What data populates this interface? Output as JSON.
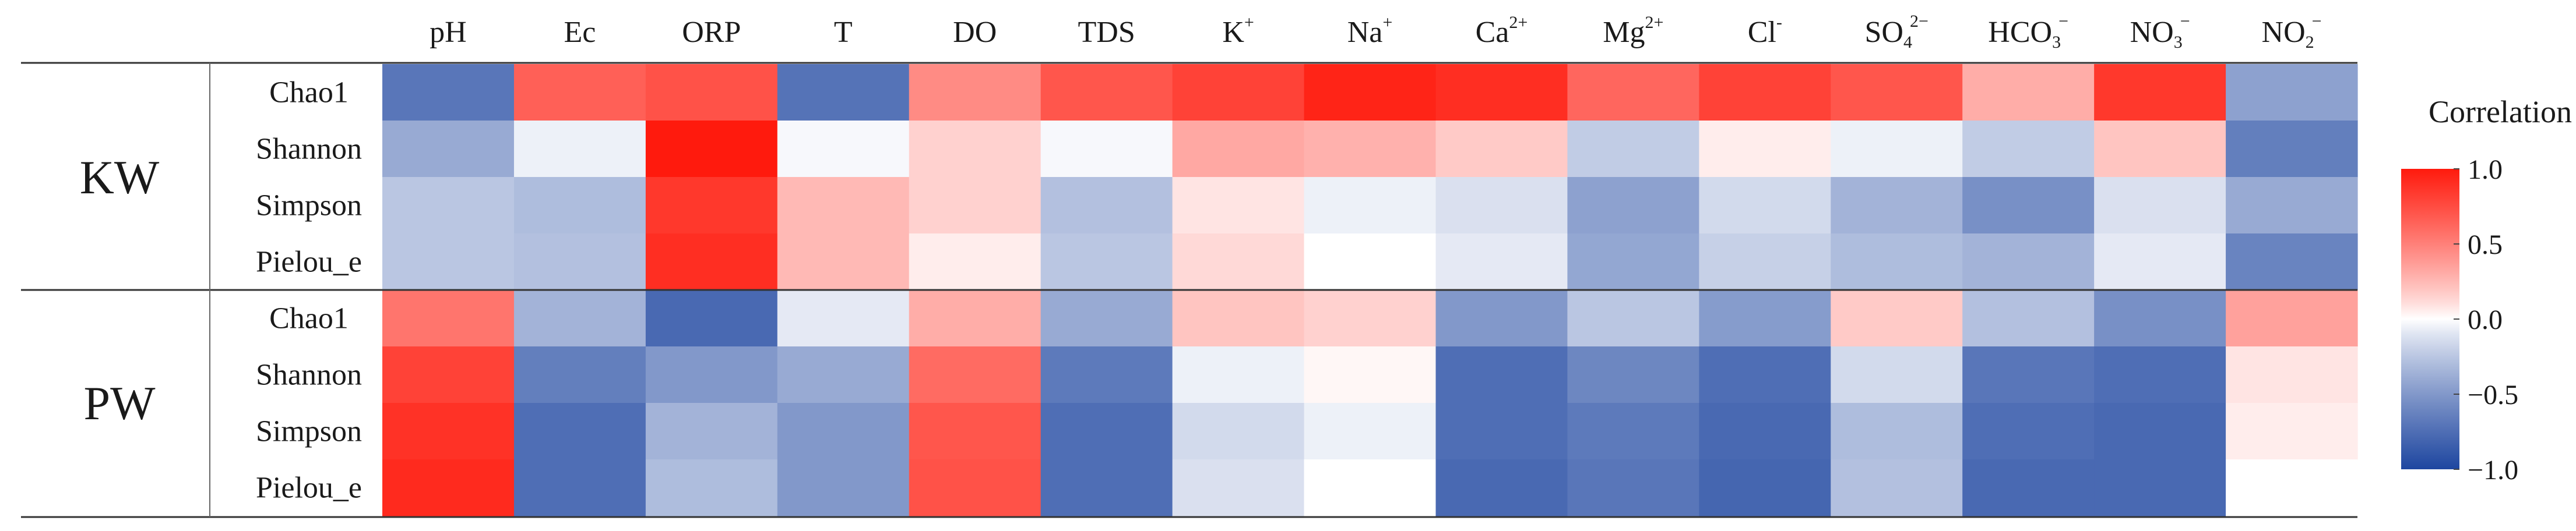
{
  "chart_data": {
    "type": "heatmap",
    "title": "",
    "columns": [
      {
        "base": "pH",
        "sup": "",
        "sub": ""
      },
      {
        "base": "Ec",
        "sup": "",
        "sub": ""
      },
      {
        "base": "ORP",
        "sup": "",
        "sub": ""
      },
      {
        "base": "T",
        "sup": "",
        "sub": ""
      },
      {
        "base": "DO",
        "sup": "",
        "sub": ""
      },
      {
        "base": "TDS",
        "sup": "",
        "sub": ""
      },
      {
        "base": "K",
        "sup": "+",
        "sub": ""
      },
      {
        "base": "Na",
        "sup": "+",
        "sub": ""
      },
      {
        "base": "Ca",
        "sup": "2+",
        "sub": ""
      },
      {
        "base": "Mg",
        "sup": "2+",
        "sub": ""
      },
      {
        "base": "Cl",
        "sup": "-",
        "sub": ""
      },
      {
        "base": "SO",
        "sup": "2−",
        "sub": "4"
      },
      {
        "base": "HCO",
        "sup": "−",
        "sub": "3"
      },
      {
        "base": "NO",
        "sup": "−",
        "sub": "3"
      },
      {
        "base": "NO",
        "sup": "−",
        "sub": "2"
      }
    ],
    "groups": [
      {
        "name": "KW",
        "rows": [
          {
            "label": "Chao1",
            "values": [
              -0.7,
              0.65,
              0.72,
              -0.72,
              0.45,
              0.7,
              0.8,
              0.95,
              0.9,
              0.62,
              0.8,
              0.7,
              0.3,
              0.85,
              -0.45
            ]
          },
          {
            "label": "Shannon",
            "values": [
              -0.4,
              -0.05,
              1.0,
              -0.02,
              0.15,
              -0.02,
              0.32,
              0.28,
              0.18,
              -0.22,
              0.05,
              -0.05,
              -0.22,
              0.2,
              -0.65
            ]
          },
          {
            "label": "Simpson",
            "values": [
              -0.25,
              -0.3,
              0.85,
              0.25,
              0.15,
              -0.28,
              0.08,
              -0.05,
              -0.12,
              -0.45,
              -0.15,
              -0.35,
              -0.55,
              -0.12,
              -0.4
            ]
          },
          {
            "label": "Pielou_e",
            "values": [
              -0.25,
              -0.28,
              0.9,
              0.25,
              0.05,
              -0.25,
              0.12,
              0.0,
              -0.08,
              -0.42,
              -0.2,
              -0.3,
              -0.35,
              -0.08,
              -0.62
            ]
          }
        ]
      },
      {
        "name": "PW",
        "rows": [
          {
            "label": "Chao1",
            "values": [
              0.55,
              -0.35,
              -0.78,
              -0.08,
              0.3,
              -0.4,
              0.2,
              0.15,
              -0.5,
              -0.25,
              -0.48,
              0.18,
              -0.28,
              -0.55,
              0.35
            ]
          },
          {
            "label": "Shannon",
            "values": [
              0.8,
              -0.65,
              -0.5,
              -0.4,
              0.6,
              -0.68,
              -0.05,
              0.02,
              -0.75,
              -0.6,
              -0.75,
              -0.15,
              -0.7,
              -0.75,
              0.08
            ]
          },
          {
            "label": "Simpson",
            "values": [
              0.88,
              -0.75,
              -0.35,
              -0.5,
              0.7,
              -0.75,
              -0.15,
              -0.05,
              -0.75,
              -0.68,
              -0.78,
              -0.3,
              -0.75,
              -0.78,
              0.05
            ]
          },
          {
            "label": "Pielou_e",
            "values": [
              0.92,
              -0.75,
              -0.3,
              -0.5,
              0.72,
              -0.75,
              -0.12,
              0.0,
              -0.78,
              -0.7,
              -0.8,
              -0.28,
              -0.78,
              -0.78,
              0.0
            ]
          }
        ]
      }
    ],
    "legend": {
      "title": "Correlation",
      "range": [
        -1.0,
        1.0
      ],
      "ticks": [
        {
          "value": 1.0,
          "label": "1.0"
        },
        {
          "value": 0.5,
          "label": "0.5"
        },
        {
          "value": 0.0,
          "label": "0.0"
        },
        {
          "value": -0.5,
          "label": "−0.5"
        },
        {
          "value": -1.0,
          "label": "−1.0"
        }
      ],
      "colors": {
        "neg": "#1e46a0",
        "mid": "#ffffff",
        "pos": "#ff1a0d"
      },
      "placement": "right"
    }
  }
}
